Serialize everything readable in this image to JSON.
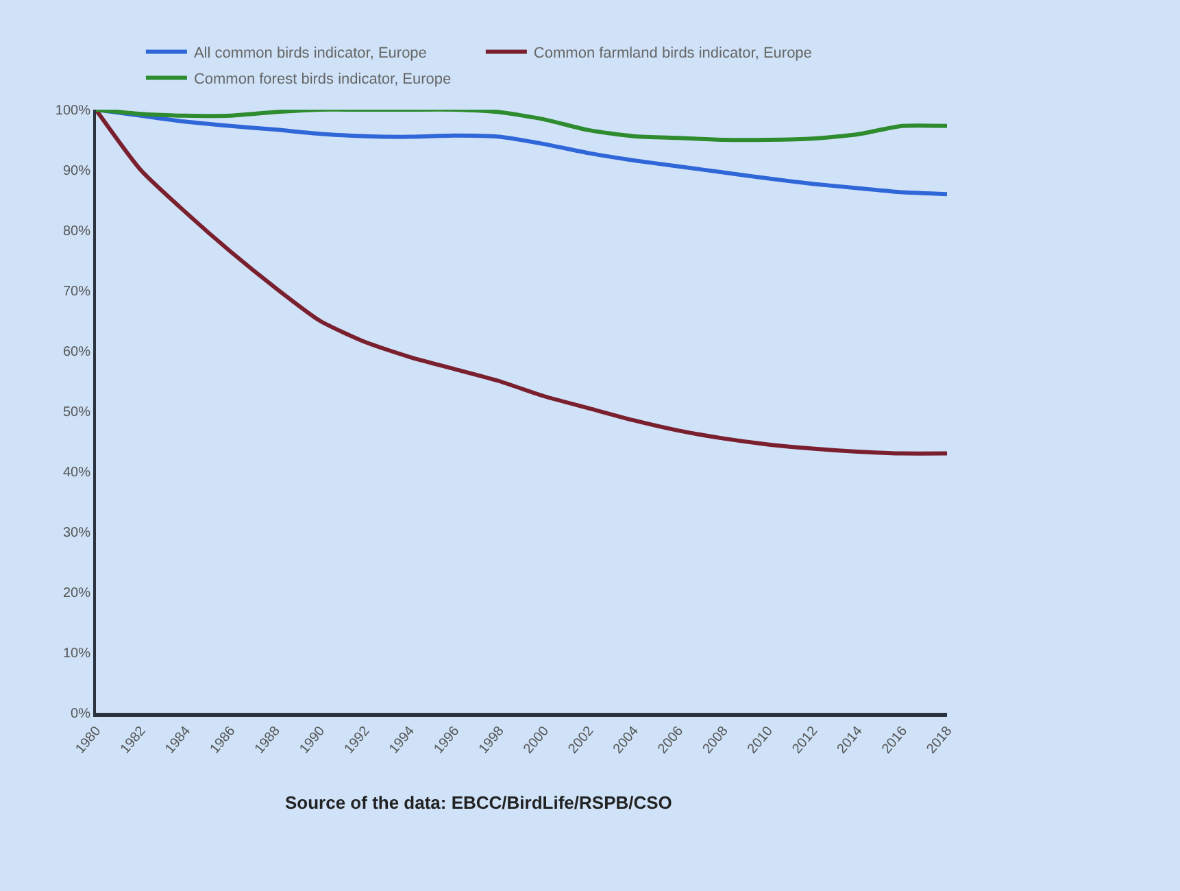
{
  "chart_data": {
    "type": "line",
    "x": [
      1980,
      1982,
      1984,
      1986,
      1988,
      1990,
      1992,
      1994,
      1996,
      1998,
      2000,
      2002,
      2004,
      2006,
      2008,
      2010,
      2012,
      2014,
      2016,
      2018
    ],
    "series": [
      {
        "name": "All common birds indicator, Europe",
        "color": "#2f66d8",
        "values": [
          100,
          99,
          98,
          97.3,
          96.7,
          96,
          95.6,
          95.5,
          95.7,
          95.5,
          94.3,
          92.8,
          91.6,
          90.6,
          89.6,
          88.6,
          87.7,
          87,
          86.3,
          86
        ]
      },
      {
        "name": "Common farmland birds indicator, Europe",
        "color": "#7a1f2e",
        "values": [
          100,
          90,
          83,
          76.5,
          70.5,
          65,
          61.5,
          59,
          57,
          55,
          52.5,
          50.5,
          48.5,
          46.8,
          45.5,
          44.5,
          43.8,
          43.3,
          43,
          43
        ]
      },
      {
        "name": "Common forest birds indicator, Europe",
        "color": "#2e8b2e",
        "values": [
          100,
          99.3,
          99,
          99,
          99.6,
          100,
          100,
          100,
          100,
          99.6,
          98.4,
          96.6,
          95.6,
          95.3,
          95,
          95,
          95.2,
          95.9,
          97.3,
          97.3
        ]
      }
    ],
    "xlim": [
      1980,
      2018
    ],
    "xticks": [
      1980,
      1982,
      1984,
      1986,
      1988,
      1990,
      1992,
      1994,
      1996,
      1998,
      2000,
      2002,
      2004,
      2006,
      2008,
      2010,
      2012,
      2014,
      2016,
      2018
    ],
    "ylim": [
      0,
      100
    ],
    "yticks": [
      {
        "value": 0,
        "label": "0%"
      },
      {
        "value": 10,
        "label": "10%"
      },
      {
        "value": 20,
        "label": "20%"
      },
      {
        "value": 30,
        "label": "30%"
      },
      {
        "value": 40,
        "label": "40%"
      },
      {
        "value": 50,
        "label": "50%"
      },
      {
        "value": 60,
        "label": "60%"
      },
      {
        "value": 70,
        "label": "70%"
      },
      {
        "value": 80,
        "label": "80%"
      },
      {
        "value": 90,
        "label": "90%"
      },
      {
        "value": 100,
        "label": "100%"
      }
    ],
    "annotations": [
      "Source of the data: EBCC/BirdLife/RSPB/CSO"
    ],
    "legend": "top",
    "grid": false,
    "marker": "none",
    "line_style": "solid"
  }
}
